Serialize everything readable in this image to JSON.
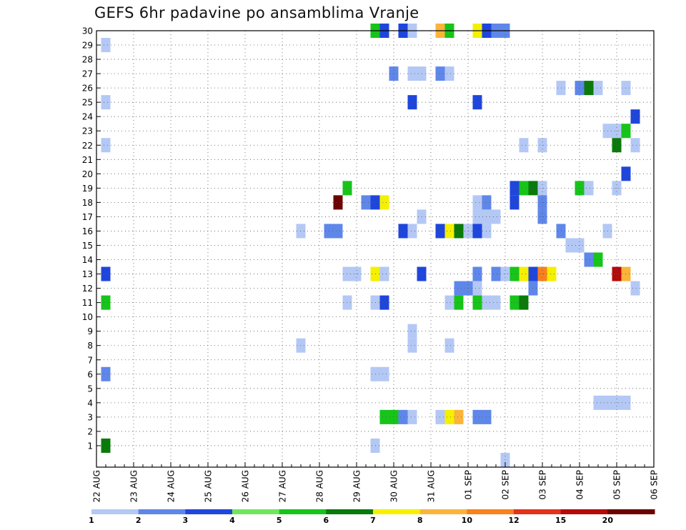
{
  "title": "GEFS 6hr padavine po ansamblima Vranje",
  "chart_data": {
    "type": "heatmap",
    "title": "GEFS 6hr padavine po ansamblima Vranje",
    "x_tick_labels": [
      "22 AUG",
      "23 AUG",
      "24 AUG",
      "25 AUG",
      "26 AUG",
      "27 AUG",
      "28 AUG",
      "29 AUG",
      "30 AUG",
      "31 AUG",
      "01 SEP",
      "02 SEP",
      "03 SEP",
      "04 SEP",
      "05 SEP",
      "06 SEP"
    ],
    "x_range_6h_steps": [
      0,
      60
    ],
    "y_tick_labels": [
      "1",
      "2",
      "3",
      "4",
      "5",
      "6",
      "7",
      "8",
      "9",
      "10",
      "11",
      "12",
      "13",
      "14",
      "15",
      "16",
      "17",
      "18",
      "19",
      "20",
      "21",
      "22",
      "23",
      "24",
      "25",
      "26",
      "27",
      "28",
      "29",
      "30"
    ],
    "y_range_members": [
      0,
      30
    ],
    "grid": "dotted",
    "colorbar": {
      "labels": [
        "1",
        "2",
        "3",
        "4",
        "5",
        "6",
        "7",
        "8",
        "10",
        "12",
        "15",
        "20"
      ],
      "colors": [
        "#b4c8f5",
        "#5f87ea",
        "#1f46dc",
        "#6ee85a",
        "#17c41a",
        "#0a7a0a",
        "#f5f000",
        "#fbb43a",
        "#f9801c",
        "#e3321c",
        "#b40a0a",
        "#6e0000"
      ]
    },
    "cells": [
      {
        "step": 1,
        "member": 29,
        "bin": 0
      },
      {
        "step": 1,
        "member": 25,
        "bin": 0
      },
      {
        "step": 1,
        "member": 22,
        "bin": 0
      },
      {
        "step": 1,
        "member": 13,
        "bin": 2
      },
      {
        "step": 1,
        "member": 11,
        "bin": 4
      },
      {
        "step": 1,
        "member": 6,
        "bin": 1
      },
      {
        "step": 1,
        "member": 1,
        "bin": 5
      },
      {
        "step": 22,
        "member": 16,
        "bin": 0
      },
      {
        "step": 22,
        "member": 8,
        "bin": 0
      },
      {
        "step": 25,
        "member": 16,
        "bin": 1
      },
      {
        "step": 26,
        "member": 16,
        "bin": 1
      },
      {
        "step": 26,
        "member": 18,
        "bin": 11
      },
      {
        "step": 27,
        "member": 19,
        "bin": 4
      },
      {
        "step": 27,
        "member": 13,
        "bin": 0
      },
      {
        "step": 28,
        "member": 13,
        "bin": 0
      },
      {
        "step": 27,
        "member": 11,
        "bin": 0
      },
      {
        "step": 29,
        "member": 18,
        "bin": 1
      },
      {
        "step": 30,
        "member": 18,
        "bin": 2
      },
      {
        "step": 31,
        "member": 18,
        "bin": 6
      },
      {
        "step": 30,
        "member": 13,
        "bin": 6
      },
      {
        "step": 31,
        "member": 13,
        "bin": 0
      },
      {
        "step": 30,
        "member": 11,
        "bin": 0
      },
      {
        "step": 31,
        "member": 11,
        "bin": 2
      },
      {
        "step": 30,
        "member": 6,
        "bin": 0
      },
      {
        "step": 31,
        "member": 6,
        "bin": 0
      },
      {
        "step": 30,
        "member": 1,
        "bin": 0
      },
      {
        "step": 30,
        "member": 30,
        "bin": 4
      },
      {
        "step": 31,
        "member": 30,
        "bin": 2
      },
      {
        "step": 31,
        "member": 3,
        "bin": 4
      },
      {
        "step": 32,
        "member": 3,
        "bin": 4
      },
      {
        "step": 33,
        "member": 3,
        "bin": 1
      },
      {
        "step": 34,
        "member": 3,
        "bin": 0
      },
      {
        "step": 33,
        "member": 30,
        "bin": 2
      },
      {
        "step": 34,
        "member": 30,
        "bin": 0
      },
      {
        "step": 32,
        "member": 27,
        "bin": 1
      },
      {
        "step": 34,
        "member": 27,
        "bin": 0
      },
      {
        "step": 35,
        "member": 27,
        "bin": 0
      },
      {
        "step": 34,
        "member": 25,
        "bin": 2
      },
      {
        "step": 33,
        "member": 16,
        "bin": 2
      },
      {
        "step": 34,
        "member": 16,
        "bin": 0
      },
      {
        "step": 35,
        "member": 17,
        "bin": 0
      },
      {
        "step": 35,
        "member": 13,
        "bin": 2
      },
      {
        "step": 34,
        "member": 9,
        "bin": 0
      },
      {
        "step": 34,
        "member": 8,
        "bin": 0
      },
      {
        "step": 37,
        "member": 30,
        "bin": 7
      },
      {
        "step": 38,
        "member": 30,
        "bin": 4
      },
      {
        "step": 37,
        "member": 27,
        "bin": 1
      },
      {
        "step": 38,
        "member": 27,
        "bin": 0
      },
      {
        "step": 37,
        "member": 16,
        "bin": 2
      },
      {
        "step": 38,
        "member": 16,
        "bin": 6
      },
      {
        "step": 39,
        "member": 16,
        "bin": 5
      },
      {
        "step": 40,
        "member": 16,
        "bin": 0
      },
      {
        "step": 38,
        "member": 11,
        "bin": 0
      },
      {
        "step": 39,
        "member": 11,
        "bin": 4
      },
      {
        "step": 38,
        "member": 8,
        "bin": 0
      },
      {
        "step": 37,
        "member": 3,
        "bin": 0
      },
      {
        "step": 38,
        "member": 3,
        "bin": 6
      },
      {
        "step": 39,
        "member": 3,
        "bin": 7
      },
      {
        "step": 39,
        "member": 12,
        "bin": 1
      },
      {
        "step": 40,
        "member": 12,
        "bin": 1
      },
      {
        "step": 41,
        "member": 12,
        "bin": 0
      },
      {
        "step": 41,
        "member": 30,
        "bin": 6
      },
      {
        "step": 42,
        "member": 30,
        "bin": 2
      },
      {
        "step": 43,
        "member": 30,
        "bin": 1
      },
      {
        "step": 44,
        "member": 30,
        "bin": 1
      },
      {
        "step": 41,
        "member": 25,
        "bin": 2
      },
      {
        "step": 41,
        "member": 18,
        "bin": 0
      },
      {
        "step": 42,
        "member": 18,
        "bin": 1
      },
      {
        "step": 41,
        "member": 17,
        "bin": 0
      },
      {
        "step": 42,
        "member": 17,
        "bin": 0
      },
      {
        "step": 43,
        "member": 17,
        "bin": 0
      },
      {
        "step": 41,
        "member": 16,
        "bin": 2
      },
      {
        "step": 42,
        "member": 16,
        "bin": 0
      },
      {
        "step": 41,
        "member": 13,
        "bin": 1
      },
      {
        "step": 41,
        "member": 11,
        "bin": 4
      },
      {
        "step": 42,
        "member": 11,
        "bin": 0
      },
      {
        "step": 43,
        "member": 11,
        "bin": 0
      },
      {
        "step": 41,
        "member": 3,
        "bin": 1
      },
      {
        "step": 42,
        "member": 3,
        "bin": 1
      },
      {
        "step": 44,
        "member": 0,
        "bin": 0
      },
      {
        "step": 43,
        "member": 13,
        "bin": 1
      },
      {
        "step": 44,
        "member": 13,
        "bin": 0
      },
      {
        "step": 45,
        "member": 13,
        "bin": 4
      },
      {
        "step": 46,
        "member": 13,
        "bin": 6
      },
      {
        "step": 47,
        "member": 13,
        "bin": 2
      },
      {
        "step": 45,
        "member": 11,
        "bin": 4
      },
      {
        "step": 46,
        "member": 11,
        "bin": 5
      },
      {
        "step": 45,
        "member": 19,
        "bin": 2
      },
      {
        "step": 45,
        "member": 18,
        "bin": 2
      },
      {
        "step": 46,
        "member": 19,
        "bin": 4
      },
      {
        "step": 47,
        "member": 19,
        "bin": 5
      },
      {
        "step": 46,
        "member": 22,
        "bin": 0
      },
      {
        "step": 48,
        "member": 13,
        "bin": 8
      },
      {
        "step": 49,
        "member": 13,
        "bin": 6
      },
      {
        "step": 48,
        "member": 19,
        "bin": 0
      },
      {
        "step": 48,
        "member": 18,
        "bin": 1
      },
      {
        "step": 48,
        "member": 17,
        "bin": 1
      },
      {
        "step": 48,
        "member": 22,
        "bin": 0
      },
      {
        "step": 47,
        "member": 12,
        "bin": 1
      },
      {
        "step": 50,
        "member": 26,
        "bin": 0
      },
      {
        "step": 50,
        "member": 16,
        "bin": 1
      },
      {
        "step": 51,
        "member": 15,
        "bin": 0
      },
      {
        "step": 52,
        "member": 15,
        "bin": 0
      },
      {
        "step": 52,
        "member": 26,
        "bin": 1
      },
      {
        "step": 53,
        "member": 26,
        "bin": 5
      },
      {
        "step": 54,
        "member": 26,
        "bin": 0
      },
      {
        "step": 52,
        "member": 19,
        "bin": 4
      },
      {
        "step": 53,
        "member": 19,
        "bin": 0
      },
      {
        "step": 53,
        "member": 14,
        "bin": 1
      },
      {
        "step": 54,
        "member": 14,
        "bin": 4
      },
      {
        "step": 54,
        "member": 4,
        "bin": 0
      },
      {
        "step": 55,
        "member": 4,
        "bin": 0
      },
      {
        "step": 56,
        "member": 4,
        "bin": 0
      },
      {
        "step": 57,
        "member": 4,
        "bin": 0
      },
      {
        "step": 55,
        "member": 23,
        "bin": 0
      },
      {
        "step": 56,
        "member": 23,
        "bin": 0
      },
      {
        "step": 57,
        "member": 23,
        "bin": 4
      },
      {
        "step": 56,
        "member": 22,
        "bin": 5
      },
      {
        "step": 56,
        "member": 19,
        "bin": 0
      },
      {
        "step": 57,
        "member": 20,
        "bin": 2
      },
      {
        "step": 55,
        "member": 16,
        "bin": 0
      },
      {
        "step": 56,
        "member": 13,
        "bin": 10
      },
      {
        "step": 57,
        "member": 13,
        "bin": 7
      },
      {
        "step": 57,
        "member": 26,
        "bin": 0
      },
      {
        "step": 58,
        "member": 24,
        "bin": 2
      },
      {
        "step": 58,
        "member": 22,
        "bin": 0
      },
      {
        "step": 58,
        "member": 12,
        "bin": 0
      }
    ]
  }
}
